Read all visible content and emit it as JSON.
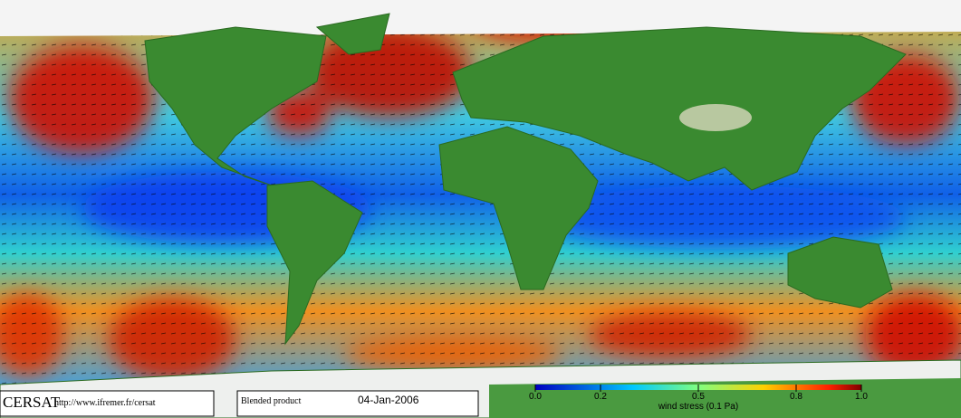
{
  "footer": {
    "logo": "CERSAT",
    "url": "http://www.ifremer.fr/cersat",
    "product": "Blended product",
    "date": "04-Jan-2006"
  },
  "colorbar": {
    "lim": [
      0,
      1
    ],
    "ticks": [
      {
        "value": 0,
        "label": "0.0"
      },
      0.2,
      0.5,
      0.8,
      {
        "value": 1,
        "label": "1.0"
      }
    ],
    "label": "wind stress (0.1 Pa)"
  }
}
